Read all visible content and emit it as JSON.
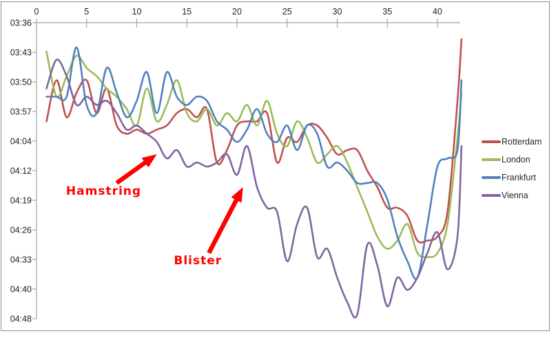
{
  "chart_data": {
    "type": "line",
    "title": "",
    "xlabel": "",
    "ylabel": "",
    "x_axis": {
      "position": "top",
      "ticks": [
        0,
        5,
        10,
        15,
        20,
        25,
        30,
        35,
        40
      ],
      "range": [
        0,
        43
      ],
      "grid": false
    },
    "y_axis": {
      "position": "left",
      "unit": "pace mm:ss per km",
      "direction": "down",
      "tick_labels": [
        "03:36",
        "03:43",
        "03:50",
        "03:57",
        "04:04",
        "04:12",
        "04:19",
        "04:26",
        "04:33",
        "04:40",
        "04:48"
      ],
      "range_seconds": [
        216,
        288
      ],
      "grid": false
    },
    "x": [
      1,
      2,
      3,
      4,
      5,
      6,
      7,
      8,
      9,
      10,
      11,
      12,
      13,
      14,
      15,
      16,
      17,
      18,
      19,
      20,
      21,
      22,
      23,
      24,
      25,
      26,
      27,
      28,
      29,
      30,
      31,
      32,
      33,
      34,
      35,
      36,
      37,
      38,
      39,
      40,
      41,
      42,
      42.4
    ],
    "series": [
      {
        "name": "Rotterdam",
        "color": "#C0504D",
        "pace": [
          "4:00",
          "3:50",
          "3:59",
          "3:53",
          "3:50",
          "3:58",
          "3:52",
          "4:01",
          "4:03",
          "4:02",
          "4:03",
          "4:02",
          "4:01",
          "3:58",
          "3:57",
          "3:59",
          "3:57",
          "4:10",
          "4:07",
          "4:01",
          "4:00",
          "4:00",
          "3:58",
          "4:10",
          "4:04",
          "4:05",
          "4:01",
          "4:01",
          "4:04",
          "4:08",
          "4:07",
          "4:07",
          "4:12",
          "4:16",
          "4:21",
          "4:21",
          "4:23",
          "4:29",
          "4:29",
          "4:28",
          "4:22",
          "3:55",
          "3:40"
        ]
      },
      {
        "name": "London",
        "color": "#9BBB59",
        "pace": [
          "3:43",
          "3:54",
          "3:49",
          "3:44",
          "3:47",
          "3:49",
          "3:52",
          "3:54",
          "3:57",
          "4:01",
          "3:52",
          "4:00",
          "3:56",
          "3:50",
          "3:58",
          "4:00",
          "3:57",
          "4:01",
          "3:58",
          "4:00",
          "3:56",
          "4:01",
          "3:55",
          "4:03",
          "4:06",
          "4:00",
          "4:04",
          "4:10",
          "4:08",
          "4:06",
          "4:10",
          "4:16",
          "4:22",
          "4:28",
          "4:31",
          "4:29",
          "4:25",
          "4:32",
          "4:33",
          "4:32",
          "4:25",
          "4:04",
          "3:53"
        ]
      },
      {
        "name": "Frankfurt",
        "color": "#4F81BD",
        "pace": [
          "3:54",
          "3:54",
          "3:54",
          "3:42",
          "3:56",
          "3:58",
          "3:47",
          "3:53",
          "3:59",
          "3:55",
          "3:48",
          "3:58",
          "3:48",
          "3:54",
          "3:56",
          "3:54",
          "3:55",
          "4:00",
          "4:02",
          "4:05",
          "4:02",
          "3:57",
          "4:03",
          "4:05",
          "4:01",
          "4:07",
          "4:01",
          "4:03",
          "4:11",
          "4:10",
          "4:12",
          "4:15",
          "4:15",
          "4:15",
          "4:19",
          "4:28",
          "4:34",
          "4:38",
          "4:25",
          "4:11",
          "4:09",
          "4:07",
          "3:50"
        ]
      },
      {
        "name": "Vienna",
        "color": "#8064A2",
        "pace": [
          "3:52",
          "3:45",
          "3:49",
          "3:56",
          "3:54",
          "3:56",
          "3:55",
          "3:58",
          "4:02",
          "4:01",
          "4:03",
          "4:05",
          "4:09",
          "4:07",
          "4:11",
          "4:10",
          "4:11",
          "4:10",
          "4:08",
          "4:13",
          "4:06",
          "4:16",
          "4:21",
          "4:22",
          "4:34",
          "4:25",
          "4:21",
          "4:33",
          "4:31",
          "4:38",
          "4:44",
          "4:47",
          "4:30",
          "4:35",
          "4:45",
          "4:38",
          "4:41",
          "4:38",
          "4:32",
          "4:27",
          "4:36",
          "4:28",
          "4:06"
        ]
      }
    ],
    "legend_position": "right",
    "legend": [
      "Rotterdam",
      "London",
      "Frankfurt",
      "Vienna"
    ],
    "annotations": [
      {
        "label": "Hamstring",
        "color": "#ff0000",
        "label_at": {
          "km": 6.7,
          "pace": "4:17"
        },
        "arrow_from": {
          "km": 8.0,
          "pace": "4:15"
        },
        "arrow_to": {
          "km": 12.0,
          "pace": "4:08"
        }
      },
      {
        "label": "Blister",
        "color": "#ff0000",
        "label_at": {
          "km": 16.1,
          "pace": "4:34"
        },
        "arrow_from": {
          "km": 17.2,
          "pace": "4:32"
        },
        "arrow_to": {
          "km": 20.6,
          "pace": "4:16"
        }
      }
    ],
    "style": {
      "axis_line_color": "#a3a3a3",
      "axis_text_color": "#1f1f1f",
      "line_width": 2.6
    }
  }
}
